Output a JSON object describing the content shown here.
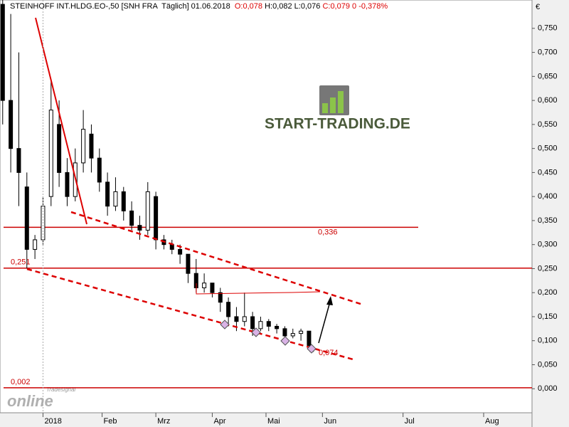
{
  "chart_data": {
    "type": "candlestick",
    "title": "STEINHOFF INT.HLDG.EO-,50 [SNH FRA  Täglich] 01.06.2018",
    "quote": {
      "open": "O:0,078",
      "high": "H:0,082 L:0,076",
      "change": "C:0,079 0 -0,378%"
    },
    "currency": "€",
    "logo": "START-TRADING.DE",
    "watermark": {
      "top": "Tradesignal",
      "main": "online"
    },
    "x": [
      1,
      4,
      7,
      10,
      13,
      16,
      19,
      22,
      25,
      28,
      31,
      34,
      37,
      40,
      43,
      46,
      49,
      52,
      55,
      58,
      61,
      64,
      67,
      70,
      73,
      76,
      79,
      82,
      85,
      88,
      91,
      94,
      97,
      100,
      103,
      106,
      109,
      112,
      115,
      116
    ],
    "open": [
      0.8,
      0.6,
      0.5,
      0.42,
      0.29,
      0.31,
      0.4,
      0.55,
      0.45,
      0.4,
      0.47,
      0.53,
      0.48,
      0.43,
      0.38,
      0.41,
      0.37,
      0.34,
      0.33,
      0.4,
      0.31,
      0.3,
      0.29,
      0.28,
      0.24,
      0.21,
      0.22,
      0.2,
      0.18,
      0.15,
      0.14,
      0.15,
      0.125,
      0.14,
      0.13,
      0.125,
      0.11,
      0.115,
      0.12,
      0.078
    ],
    "high": [
      0.81,
      0.78,
      0.7,
      0.45,
      0.32,
      0.4,
      0.64,
      0.6,
      0.48,
      0.5,
      0.58,
      0.55,
      0.5,
      0.45,
      0.44,
      0.42,
      0.39,
      0.36,
      0.43,
      0.41,
      0.32,
      0.31,
      0.3,
      0.28,
      0.27,
      0.24,
      0.22,
      0.21,
      0.19,
      0.17,
      0.2,
      0.16,
      0.15,
      0.145,
      0.135,
      0.13,
      0.125,
      0.125,
      0.12,
      0.082
    ],
    "low": [
      0.55,
      0.45,
      0.38,
      0.25,
      0.27,
      0.3,
      0.38,
      0.42,
      0.38,
      0.39,
      0.45,
      0.45,
      0.41,
      0.36,
      0.37,
      0.35,
      0.33,
      0.31,
      0.32,
      0.29,
      0.29,
      0.28,
      0.26,
      0.22,
      0.2,
      0.2,
      0.19,
      0.16,
      0.13,
      0.12,
      0.13,
      0.11,
      0.12,
      0.12,
      0.115,
      0.1,
      0.105,
      0.1,
      0.08,
      0.076
    ],
    "close": [
      0.6,
      0.5,
      0.45,
      0.29,
      0.31,
      0.38,
      0.58,
      0.45,
      0.4,
      0.47,
      0.54,
      0.48,
      0.43,
      0.38,
      0.41,
      0.37,
      0.34,
      0.33,
      0.41,
      0.31,
      0.3,
      0.29,
      0.28,
      0.24,
      0.21,
      0.22,
      0.2,
      0.18,
      0.15,
      0.14,
      0.15,
      0.125,
      0.14,
      0.13,
      0.125,
      0.11,
      0.115,
      0.12,
      0.09,
      0.079
    ],
    "levels": [
      {
        "value": 0.336,
        "label": "0,336"
      },
      {
        "value": 0.251,
        "label": "0,251"
      },
      {
        "value": 0.002,
        "label": "0,002"
      }
    ],
    "target_label": {
      "value": 0.074,
      "label": "0,074"
    },
    "xlim": [
      0,
      198
    ],
    "xticks": [
      {
        "value": 16,
        "label": "2018"
      },
      {
        "value": 38,
        "label": "Feb"
      },
      {
        "value": 58,
        "label": "Mrz"
      },
      {
        "value": 79,
        "label": "Apr"
      },
      {
        "value": 99,
        "label": "Mai"
      },
      {
        "value": 120,
        "label": "Jun"
      },
      {
        "value": 150,
        "label": "Jul"
      },
      {
        "value": 180,
        "label": "Aug"
      }
    ],
    "ylim": [
      -0.05,
      0.809
    ],
    "yticks": [
      {
        "value": 0,
        "label": "0,000"
      },
      {
        "value": 0.05,
        "label": "0,050"
      },
      {
        "value": 0.1,
        "label": "0,100"
      },
      {
        "value": 0.15,
        "label": "0,150"
      },
      {
        "value": 0.2,
        "label": "0,200"
      },
      {
        "value": 0.25,
        "label": "0,250"
      },
      {
        "value": 0.3,
        "label": "0,300"
      },
      {
        "value": 0.35,
        "label": "0,350"
      },
      {
        "value": 0.4,
        "label": "0,400"
      },
      {
        "value": 0.45,
        "label": "0,450"
      },
      {
        "value": 0.5,
        "label": "0,500"
      },
      {
        "value": 0.55,
        "label": "0,550"
      },
      {
        "value": 0.6,
        "label": "0,600"
      },
      {
        "value": 0.65,
        "label": "0,650"
      },
      {
        "value": 0.7,
        "label": "0,700"
      },
      {
        "value": 0.75,
        "label": "0,750"
      }
    ],
    "up_color": "#ffffff",
    "down_color": "#000000",
    "level_color": "#cc0000"
  }
}
